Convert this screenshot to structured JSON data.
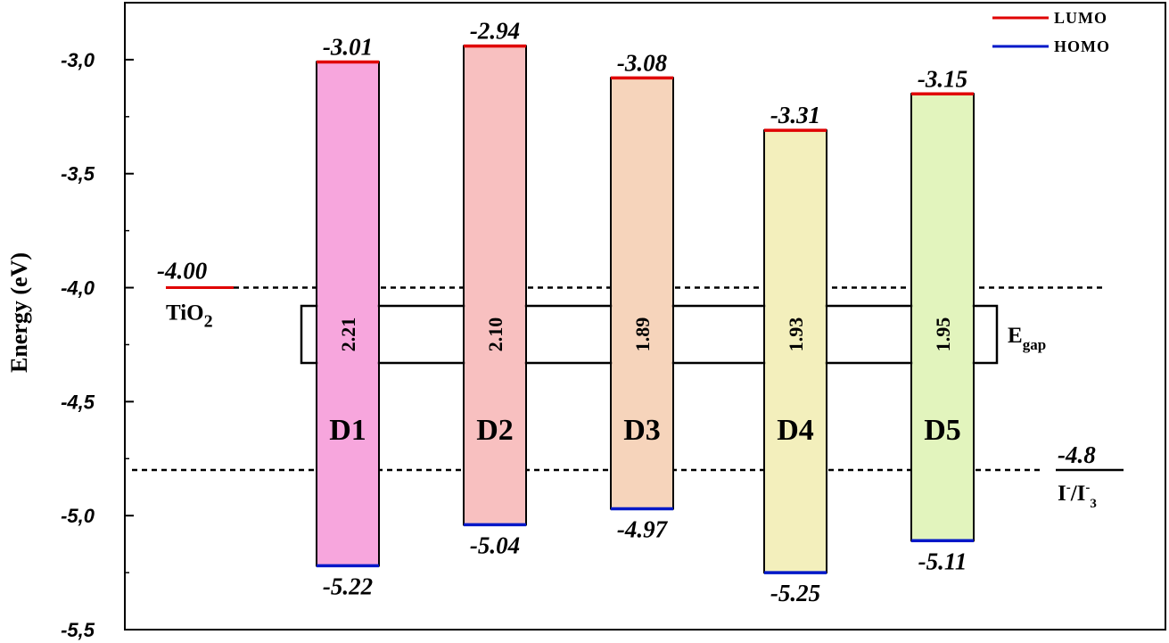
{
  "chart_data": {
    "type": "bar",
    "ylabel": "Energy (eV)",
    "ylim": [
      -5.5,
      -2.75
    ],
    "yticks": [
      -3.0,
      -3.5,
      -4.0,
      -4.5,
      -5.0,
      -5.5
    ],
    "ytick_labels": [
      "-3,0",
      "-3,5",
      "-4,0",
      "-4,5",
      "-5,0",
      "-5,5"
    ],
    "legend": {
      "placement": "top-right",
      "items": [
        {
          "label": "LUMO",
          "color": "#e00000"
        },
        {
          "label": "HOMO",
          "color": "#0018c8"
        }
      ]
    },
    "dyes": [
      {
        "name": "D1",
        "lumo": -3.01,
        "homo": -5.22,
        "lumo_label": "-3.01",
        "homo_label": "-5.22",
        "gap_label": "2.21",
        "fill": "#f7a6dd"
      },
      {
        "name": "D2",
        "lumo": -2.94,
        "homo": -5.04,
        "lumo_label": "-2.94",
        "homo_label": "-5.04",
        "gap_label": "2.10",
        "fill": "#f8c0c0"
      },
      {
        "name": "D3",
        "lumo": -3.08,
        "homo": -4.97,
        "lumo_label": "-3.08",
        "homo_label": "-4.97",
        "gap_label": "1.89",
        "fill": "#f6d4bb"
      },
      {
        "name": "D4",
        "lumo": -3.31,
        "homo": -5.25,
        "lumo_label": "-3.31",
        "homo_label": "-5.25",
        "gap_label": "1.93",
        "fill": "#f3efbc"
      },
      {
        "name": "D5",
        "lumo": -3.15,
        "homo": -5.11,
        "lumo_label": "-3.15",
        "homo_label": "-5.11",
        "gap_label": "1.95",
        "fill": "#e2f4bd"
      }
    ],
    "references": {
      "tio2": {
        "value": -4.0,
        "value_label": "-4.00",
        "label_main": "TiO",
        "label_sub": "2"
      },
      "redox": {
        "value": -4.8,
        "value_label": "-4.8",
        "label_p1": "I",
        "label_sup1": "-",
        "label_p2": "/I",
        "label_sup2": "-",
        "label_sub2": "3"
      }
    },
    "egap_label": {
      "main": "E",
      "sub": "gap"
    },
    "colors": {
      "lumo": "#e00000",
      "homo": "#0018c8",
      "dash": "#000000"
    }
  }
}
